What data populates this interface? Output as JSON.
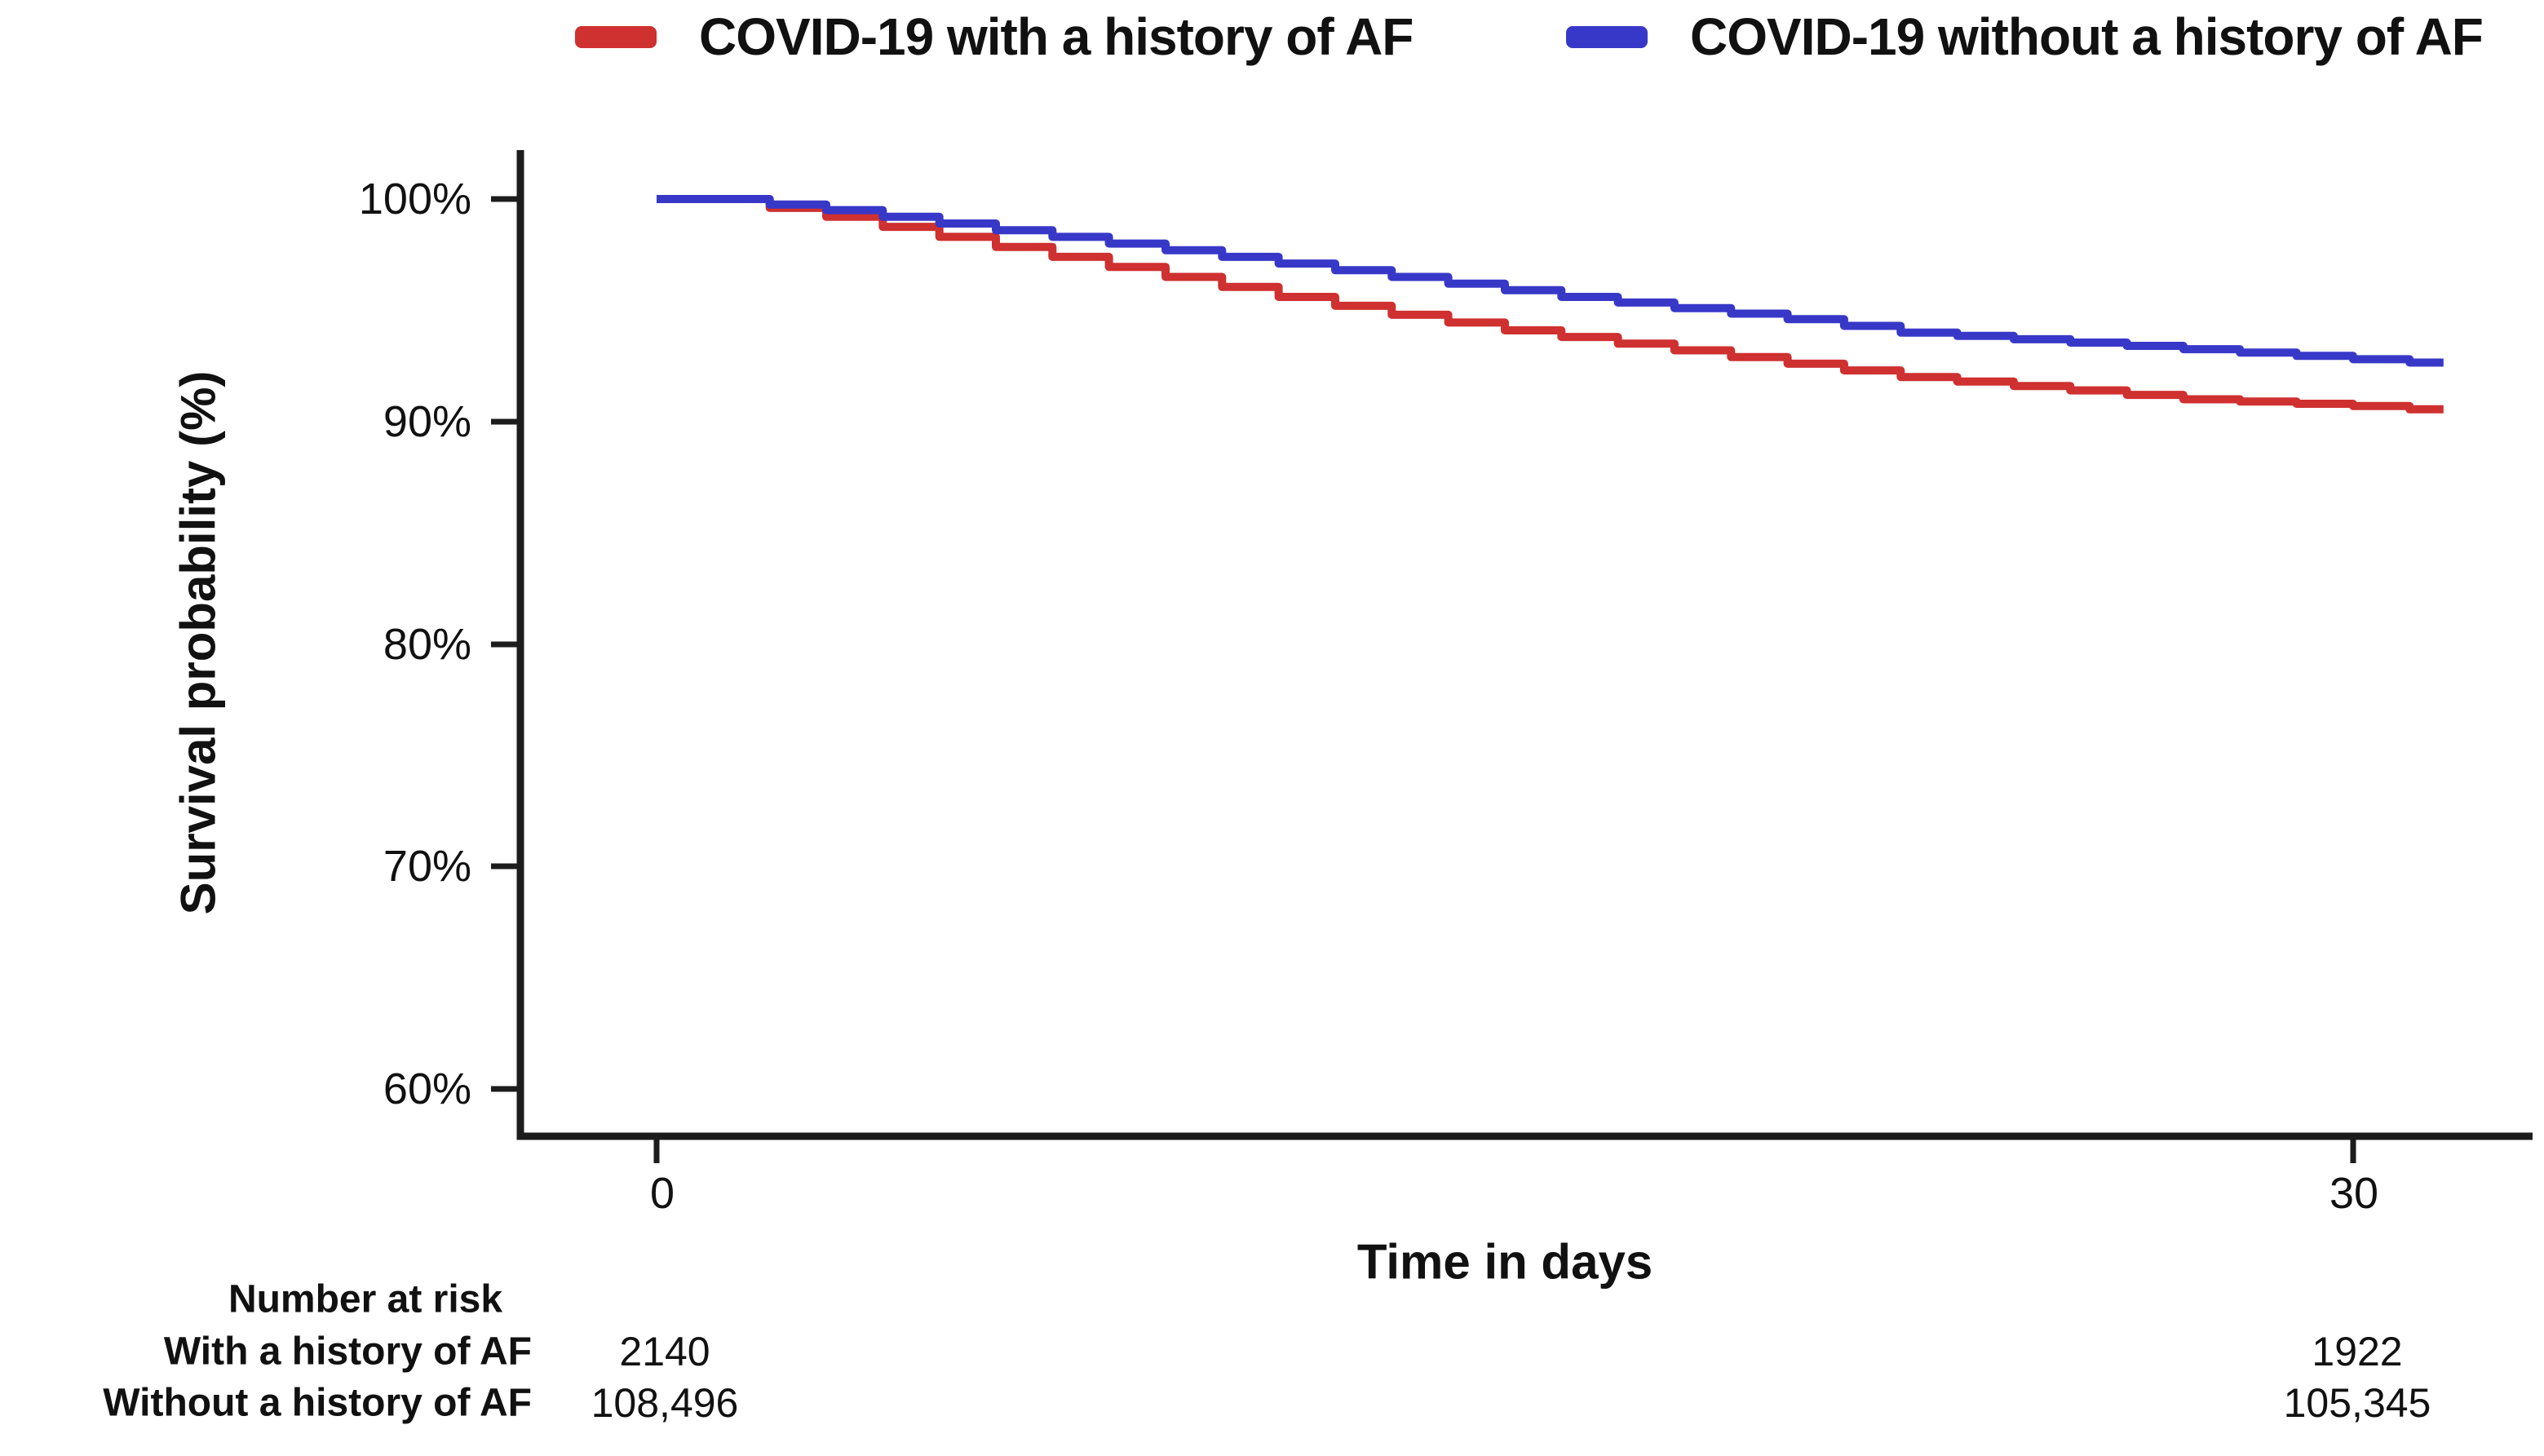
{
  "figure": {
    "background": "#ffffff"
  },
  "legend": {
    "items": [
      {
        "label": "COVID-19 with a history of AF",
        "color": "#cf3030"
      },
      {
        "label": "COVID-19 without a history of AF",
        "color": "#3838c8"
      }
    ]
  },
  "axes": {
    "y_label": "Survival probability (%)",
    "x_label": "Time in days",
    "y_ticks": [
      "100%",
      "90%",
      "80%",
      "70%",
      "60%"
    ],
    "x_ticks": [
      "0",
      "30"
    ],
    "axis_color": "#1c1c1c"
  },
  "risk_table": {
    "header": "Number at risk",
    "rows": [
      {
        "label": "With a history of AF",
        "value_day0": "2140",
        "value_day30": "1922"
      },
      {
        "label": "Without a history of AF",
        "value_day0": "108,496",
        "value_day30": "105,345"
      }
    ]
  },
  "chart_data": {
    "type": "line",
    "subtype": "kaplan-meier-step-curve",
    "title": "",
    "xlabel": "Time in days",
    "ylabel": "Survival probability (%)",
    "xlim": [
      -2.4,
      32.3
    ],
    "ylim": [
      58,
      102
    ],
    "x_tick_values": [
      0,
      30
    ],
    "y_tick_values": [
      100,
      90,
      80,
      70,
      60
    ],
    "grid": false,
    "legend_position": "top",
    "x_days": [
      0,
      1,
      2,
      3,
      4,
      5,
      6,
      7,
      8,
      9,
      10,
      11,
      12,
      13,
      14,
      15,
      16,
      17,
      18,
      19,
      20,
      21,
      22,
      23,
      24,
      25,
      26,
      27,
      28,
      29,
      30,
      31
    ],
    "curve_end_day": 31.6,
    "series": [
      {
        "name": "COVID-19 with a history of AF",
        "color": "#cf3030",
        "values": [
          100,
          100,
          99.6,
          99.2,
          98.75,
          98.3,
          97.85,
          97.4,
          96.95,
          96.5,
          96.05,
          95.6,
          95.2,
          94.8,
          94.45,
          94.1,
          93.8,
          93.5,
          93.2,
          92.9,
          92.6,
          92.3,
          92.0,
          91.8,
          91.6,
          91.4,
          91.2,
          91.0,
          90.9,
          90.8,
          90.7,
          90.55
        ],
        "number_at_risk": {
          "day0": 2140,
          "day30": 1922
        }
      },
      {
        "name": "COVID-19 without a history of AF",
        "color": "#3838c8",
        "values": [
          100,
          100,
          99.75,
          99.5,
          99.2,
          98.9,
          98.6,
          98.3,
          98.0,
          97.7,
          97.4,
          97.1,
          96.8,
          96.5,
          96.2,
          95.9,
          95.6,
          95.35,
          95.1,
          94.85,
          94.6,
          94.3,
          94.0,
          93.85,
          93.7,
          93.55,
          93.4,
          93.25,
          93.1,
          92.95,
          92.8,
          92.65
        ],
        "number_at_risk": {
          "day0": 108496,
          "day30": 105345
        }
      }
    ]
  }
}
